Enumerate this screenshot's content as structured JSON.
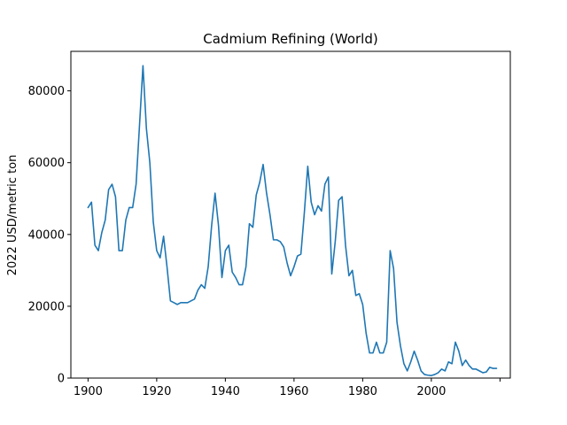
{
  "chart_data": {
    "type": "line",
    "title": "Cadmium Refining (World)",
    "xlabel": "",
    "ylabel": "2022 USD/metric ton",
    "xlim": [
      1895,
      2023
    ],
    "ylim": [
      0,
      91000
    ],
    "xticks": [
      1900,
      1920,
      1940,
      1960,
      1980,
      2000,
      2020
    ],
    "xtick_labels": [
      "1900",
      "1920",
      "1940",
      "1960",
      "1980",
      "2000",
      ""
    ],
    "yticks": [
      0,
      20000,
      40000,
      60000,
      80000
    ],
    "ytick_labels": [
      "0",
      "20000",
      "40000",
      "60000",
      "80000"
    ],
    "grid": false,
    "color": "#1f77b4",
    "series": [
      {
        "x": [
          1900,
          1901,
          1902,
          1903,
          1904,
          1905,
          1906,
          1907,
          1908,
          1909,
          1910,
          1911,
          1912,
          1913,
          1914,
          1915,
          1916,
          1917,
          1918,
          1919,
          1920,
          1921,
          1922,
          1923,
          1924,
          1925,
          1926,
          1927,
          1928,
          1929,
          1930,
          1931,
          1932,
          1933,
          1934,
          1935,
          1936,
          1937,
          1938,
          1939,
          1940,
          1941,
          1942,
          1943,
          1944,
          1945,
          1946,
          1947,
          1948,
          1949,
          1950,
          1951,
          1952,
          1953,
          1954,
          1955,
          1956,
          1957,
          1958,
          1959,
          1960,
          1961,
          1962,
          1963,
          1964,
          1965,
          1966,
          1967,
          1968,
          1969,
          1970,
          1971,
          1972,
          1973,
          1974,
          1975,
          1976,
          1977,
          1978,
          1979,
          1980,
          1981,
          1982,
          1983,
          1984,
          1985,
          1986,
          1987,
          1988,
          1989,
          1990,
          1991,
          1992,
          1993,
          1994,
          1995,
          1996,
          1997,
          1998,
          1999,
          2000,
          2001,
          2002,
          2003,
          2004,
          2005,
          2006,
          2007,
          2008,
          2009,
          2010,
          2011,
          2012,
          2013,
          2014,
          2015,
          2016,
          2017,
          2018,
          2019
        ],
        "values": [
          47500,
          49000,
          37000,
          35500,
          40500,
          44000,
          52500,
          54000,
          50500,
          35500,
          35500,
          44000,
          47500,
          47500,
          54000,
          70500,
          87000,
          69500,
          60000,
          43500,
          35500,
          33500,
          39500,
          31000,
          21500,
          21000,
          20500,
          21000,
          21000,
          21000,
          21500,
          22000,
          24500,
          26000,
          25000,
          31000,
          42500,
          51500,
          42500,
          28000,
          35500,
          37000,
          29500,
          28000,
          26000,
          26000,
          31000,
          43000,
          42000,
          51000,
          54500,
          59500,
          51500,
          45500,
          38500,
          38500,
          38000,
          36500,
          32000,
          28500,
          31000,
          34000,
          34500,
          46000,
          59000,
          49000,
          45500,
          48000,
          46500,
          54000,
          56000,
          29000,
          38000,
          49500,
          50500,
          37000,
          28500,
          30000,
          23000,
          23500,
          20500,
          12500,
          7000,
          7000,
          10000,
          7000,
          7000,
          10000,
          35500,
          30500,
          15500,
          9000,
          4000,
          2000,
          4500,
          7500,
          5000,
          2000,
          1000,
          800,
          700,
          1000,
          1500,
          2500,
          2000,
          4500,
          4000,
          10000,
          7500,
          3500,
          5000,
          3500,
          2500,
          2500,
          2000,
          1500,
          1700,
          3000,
          2700,
          2700
        ]
      }
    ]
  }
}
